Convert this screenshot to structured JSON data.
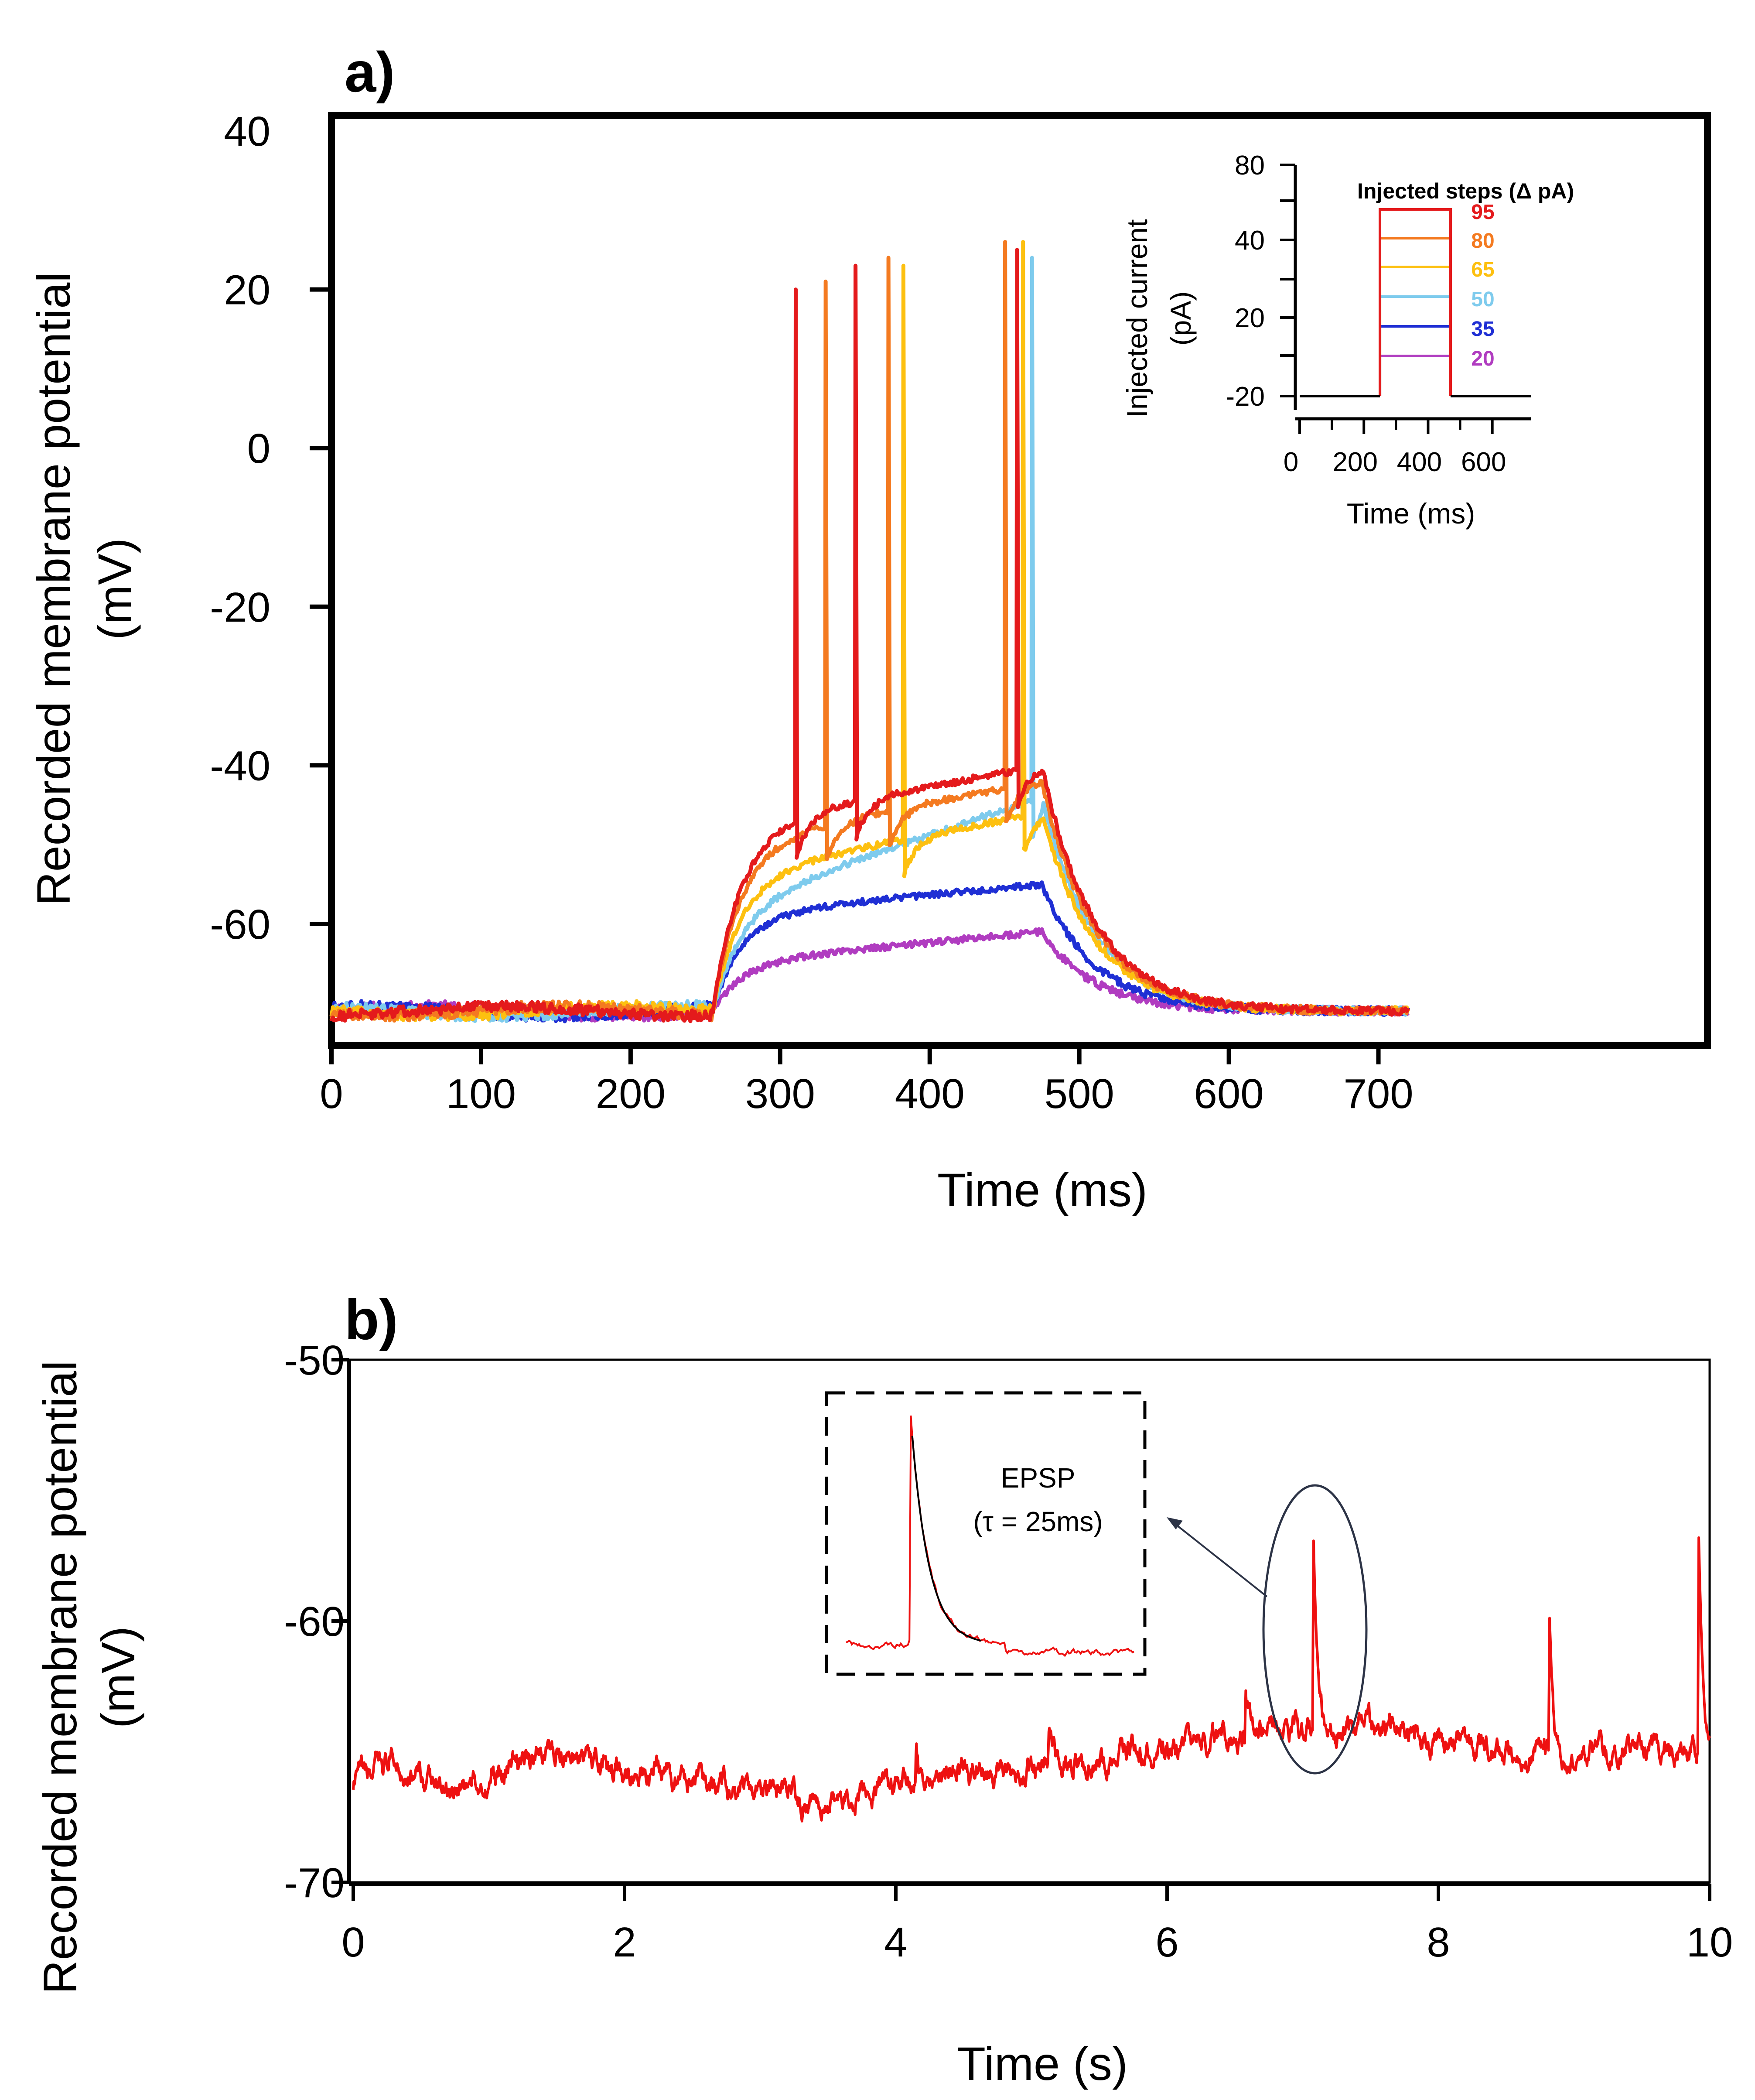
{
  "panel_a": {
    "label": "a)",
    "xlabel": "Time (ms)",
    "ylabel_line1": "Recorded membrane potential",
    "ylabel_line2": "(mV)",
    "xticks": [
      "0",
      "100",
      "200",
      "300",
      "400",
      "500",
      "600",
      "700"
    ],
    "yticks": [
      "40",
      "20",
      "0",
      "-20",
      "-40",
      "-60"
    ],
    "inset": {
      "ylabel_line1": "Injected current",
      "ylabel_line2": "(pA)",
      "xlabel": "Time (ms)",
      "xticks": [
        "0",
        "200",
        "400",
        "600"
      ],
      "yticks": [
        "80",
        "40",
        "20",
        "-20"
      ],
      "legend_title": "Injected steps (Δ pA)"
    }
  },
  "panel_b": {
    "label": "b)",
    "xlabel": "Time (s)",
    "ylabel_line1": "Recorded membrane potential",
    "ylabel_line2": "(mV)",
    "xticks": [
      "0",
      "2",
      "4",
      "6",
      "8",
      "10"
    ],
    "yticks": [
      "-50",
      "-60",
      "-70"
    ],
    "annotation_line1": "EPSP",
    "annotation_line2": "(τ = 25ms)"
  },
  "colors": {
    "s95": "#e41a1c",
    "s80": "#f47a20",
    "s65": "#fdc010",
    "s50": "#7ecbed",
    "s35": "#1f2fd4",
    "s20": "#b03cc0",
    "trace_b": "#ee1111"
  },
  "chart_data": [
    {
      "type": "line",
      "panel": "a",
      "xlabel": "Time (ms)",
      "ylabel": "Recorded membrane potential (mV)",
      "xlim": [
        0,
        920
      ],
      "ylim": [
        -75,
        40
      ],
      "grid": false,
      "baseline_mV": -71,
      "step_onset_ms": 255,
      "step_offset_ms": 475,
      "trace_end_ms": 720,
      "series": [
        {
          "name": "95",
          "color_key": "s95",
          "spike_times_ms": [
            310,
            350,
            458
          ],
          "spike_peaks_mV": [
            20,
            23,
            25
          ],
          "plateau_start_mV": -48,
          "plateau_end_mV": -40
        },
        {
          "name": "80",
          "color_key": "s80",
          "spike_times_ms": [
            330,
            372,
            450
          ],
          "spike_peaks_mV": [
            21,
            24,
            26
          ],
          "plateau_start_mV": -50,
          "plateau_end_mV": -42
        },
        {
          "name": "65",
          "color_key": "s65",
          "spike_times_ms": [
            382,
            462
          ],
          "spike_peaks_mV": [
            23,
            26
          ],
          "plateau_start_mV": -54,
          "plateau_end_mV": -46
        },
        {
          "name": "50",
          "color_key": "s50",
          "spike_times_ms": [
            468
          ],
          "spike_peaks_mV": [
            24
          ],
          "plateau_start_mV": -58,
          "plateau_end_mV": -44
        },
        {
          "name": "35",
          "color_key": "s35",
          "spike_times_ms": [],
          "spike_peaks_mV": [],
          "plateau_start_mV": -59,
          "plateau_end_mV": -55
        },
        {
          "name": "20",
          "color_key": "s20",
          "spike_times_ms": [],
          "spike_peaks_mV": [],
          "plateau_start_mV": -65,
          "plateau_end_mV": -61
        }
      ]
    },
    {
      "type": "line",
      "panel": "a-inset",
      "xlabel": "Time (ms)",
      "ylabel": "Injected current (pA)",
      "xlim": [
        0,
        720
      ],
      "legend_title": "Injected steps (Δ pA)",
      "legend_position": "top-right",
      "step_onset_ms": 250,
      "step_offset_ms": 470,
      "baseline_pA": -20,
      "series": [
        {
          "name": "95",
          "color_key": "s95"
        },
        {
          "name": "80",
          "color_key": "s80"
        },
        {
          "name": "65",
          "color_key": "s65"
        },
        {
          "name": "50",
          "color_key": "s50"
        },
        {
          "name": "35",
          "color_key": "s35"
        },
        {
          "name": "20",
          "color_key": "s20"
        }
      ]
    },
    {
      "type": "line",
      "panel": "b",
      "xlabel": "Time (s)",
      "ylabel": "Recorded membrane potential (mV)",
      "xlim": [
        0,
        10
      ],
      "ylim": [
        -70,
        -50
      ],
      "grid": false,
      "baseline_points": [
        [
          0,
          -66.2
        ],
        [
          0.3,
          -65.4
        ],
        [
          0.6,
          -66.3
        ],
        [
          1.0,
          -66.1
        ],
        [
          1.4,
          -64.9
        ],
        [
          1.8,
          -65.6
        ],
        [
          2.2,
          -65.8
        ],
        [
          2.6,
          -66.3
        ],
        [
          3.0,
          -66.4
        ],
        [
          3.5,
          -67.0
        ],
        [
          4.0,
          -66.2
        ],
        [
          4.5,
          -65.8
        ],
        [
          5.0,
          -65.6
        ],
        [
          5.5,
          -65.3
        ],
        [
          6.0,
          -64.8
        ],
        [
          6.5,
          -64.3
        ],
        [
          6.8,
          -63.8
        ],
        [
          7.2,
          -64.2
        ],
        [
          7.6,
          -64.0
        ],
        [
          8.0,
          -64.6
        ],
        [
          8.5,
          -65.0
        ],
        [
          9.0,
          -65.3
        ],
        [
          9.5,
          -64.9
        ],
        [
          10.0,
          -65.0
        ]
      ],
      "events": [
        {
          "t": 4.15,
          "peak_mV": -64.6
        },
        {
          "t": 5.13,
          "peak_mV": -63.8
        },
        {
          "t": 6.58,
          "peak_mV": -62.6
        },
        {
          "t": 7.08,
          "peak_mV": -56.6
        },
        {
          "t": 8.82,
          "peak_mV": -60.0
        },
        {
          "t": 9.92,
          "peak_mV": -56.9
        }
      ],
      "inset": {
        "label": "EPSP",
        "tau": "(τ = 25ms)",
        "highlighted_event_t": 7.08
      }
    }
  ]
}
